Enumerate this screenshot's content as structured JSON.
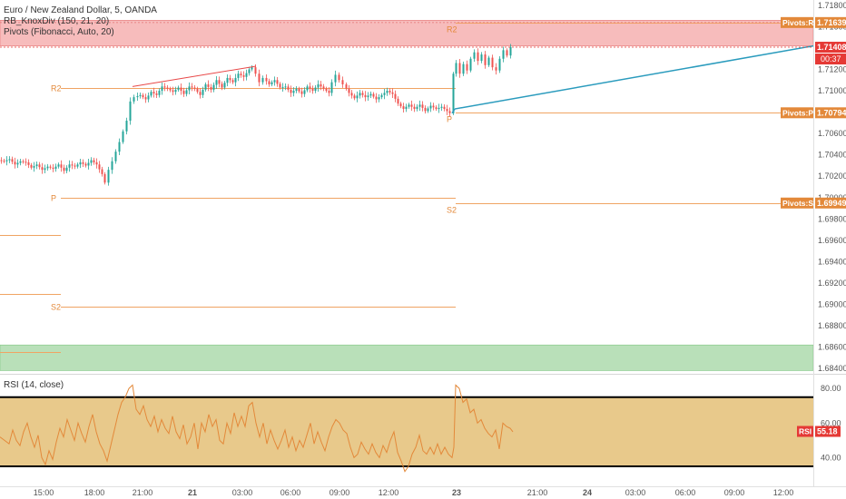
{
  "header": {
    "symbol_line": "Euro / New Zealand Dollar, 5, OANDA",
    "indicator_1": "RB_KnoxDiv (150, 21, 20)",
    "indicator_2": "Pivots (Fibonacci, Auto, 20)"
  },
  "rsi_panel": {
    "title": "RSI (14, close)"
  },
  "colors": {
    "up_candle": "#26a69a",
    "down_candle": "#ef5350",
    "pivot_line": "#f0a463",
    "resistance_zone": "#f7bcbc",
    "support_zone": "#b9e0b9",
    "rsi_band": "#e8c98b",
    "rsi_line": "#e3893a",
    "trend_line_red": "#e84848",
    "trend_line_blue": "#2a9bbd",
    "tag_orange": "#e3893a",
    "tag_red": "#e53935"
  },
  "chart_data": [
    {
      "type": "candlestick",
      "title": "Euro / New Zealand Dollar, 5, OANDA",
      "ylim": [
        1.6835,
        1.7185
      ],
      "y_ticks": [
        "1.71800",
        "1.71600",
        "1.71400",
        "1.71200",
        "1.71000",
        "1.70800",
        "1.70600",
        "1.70400",
        "1.70200",
        "1.70000",
        "1.69800",
        "1.69600",
        "1.69400",
        "1.69200",
        "1.69000",
        "1.68800",
        "1.68600",
        "1.68400"
      ],
      "x_ticks": [
        "15:00",
        "18:00",
        "21:00",
        "21",
        "03:00",
        "06:00",
        "09:00",
        "12:00",
        "23",
        "21:00",
        "24",
        "03:00",
        "06:00",
        "09:00",
        "12:00"
      ],
      "price_path": [
        [
          0,
          1.7035
        ],
        [
          6,
          1.7034
        ],
        [
          12,
          1.7036
        ],
        [
          18,
          1.7031
        ],
        [
          24,
          1.7034
        ],
        [
          30,
          1.7033
        ],
        [
          36,
          1.7028
        ],
        [
          42,
          1.7031
        ],
        [
          48,
          1.7026
        ],
        [
          54,
          1.7029
        ],
        [
          60,
          1.7027
        ],
        [
          66,
          1.7031
        ],
        [
          72,
          1.7025
        ],
        [
          78,
          1.7031
        ],
        [
          84,
          1.7029
        ],
        [
          90,
          1.7033
        ],
        [
          96,
          1.703
        ],
        [
          102,
          1.7035
        ],
        [
          108,
          1.7031
        ],
        [
          114,
          1.7022
        ],
        [
          118,
          1.7014
        ],
        [
          122,
          1.7026
        ],
        [
          126,
          1.7034
        ],
        [
          130,
          1.7043
        ],
        [
          134,
          1.7052
        ],
        [
          138,
          1.7062
        ],
        [
          142,
          1.7072
        ],
        [
          146,
          1.709
        ],
        [
          150,
          1.7094
        ],
        [
          156,
          1.7096
        ],
        [
          162,
          1.7092
        ],
        [
          168,
          1.7099
        ],
        [
          174,
          1.7096
        ],
        [
          180,
          1.7104
        ],
        [
          186,
          1.7102
        ],
        [
          192,
          1.7099
        ],
        [
          198,
          1.7103
        ],
        [
          204,
          1.7097
        ],
        [
          210,
          1.7104
        ],
        [
          216,
          1.7102
        ],
        [
          222,
          1.7096
        ],
        [
          228,
          1.7106
        ],
        [
          234,
          1.7101
        ],
        [
          240,
          1.711
        ],
        [
          246,
          1.7103
        ],
        [
          252,
          1.7112
        ],
        [
          258,
          1.7108
        ],
        [
          264,
          1.7116
        ],
        [
          270,
          1.7113
        ],
        [
          276,
          1.712
        ],
        [
          280,
          1.7122
        ],
        [
          284,
          1.7116
        ],
        [
          288,
          1.7108
        ],
        [
          292,
          1.7112
        ],
        [
          298,
          1.7106
        ],
        [
          304,
          1.711
        ],
        [
          310,
          1.7103
        ],
        [
          316,
          1.7104
        ],
        [
          322,
          1.7098
        ],
        [
          328,
          1.7102
        ],
        [
          334,
          1.7097
        ],
        [
          340,
          1.7104
        ],
        [
          346,
          1.71
        ],
        [
          352,
          1.7106
        ],
        [
          358,
          1.7102
        ],
        [
          364,
          1.7098
        ],
        [
          368,
          1.7108
        ],
        [
          372,
          1.7115
        ],
        [
          376,
          1.711
        ],
        [
          380,
          1.7106
        ],
        [
          386,
          1.7098
        ],
        [
          392,
          1.7093
        ],
        [
          398,
          1.7098
        ],
        [
          404,
          1.7094
        ],
        [
          410,
          1.7097
        ],
        [
          416,
          1.7092
        ],
        [
          422,
          1.7096
        ],
        [
          428,
          1.71
        ],
        [
          434,
          1.7097
        ],
        [
          440,
          1.7088
        ],
        [
          446,
          1.7083
        ],
        [
          452,
          1.7087
        ],
        [
          458,
          1.7083
        ],
        [
          464,
          1.7087
        ],
        [
          470,
          1.7081
        ],
        [
          476,
          1.7086
        ],
        [
          482,
          1.7083
        ],
        [
          488,
          1.7085
        ],
        [
          494,
          1.7081
        ],
        [
          498,
          1.7079
        ],
        [
          501,
          1.7116
        ],
        [
          505,
          1.7126
        ],
        [
          509,
          1.7116
        ],
        [
          513,
          1.7125
        ],
        [
          517,
          1.7119
        ],
        [
          521,
          1.713
        ],
        [
          525,
          1.7136
        ],
        [
          529,
          1.7128
        ],
        [
          533,
          1.7134
        ],
        [
          537,
          1.7124
        ],
        [
          541,
          1.7131
        ],
        [
          545,
          1.7122
        ],
        [
          549,
          1.7119
        ],
        [
          553,
          1.713
        ],
        [
          557,
          1.7138
        ],
        [
          561,
          1.7133
        ],
        [
          565,
          1.7141
        ]
      ],
      "last_price": "1.71408",
      "countdown": "00:37",
      "pivot_tags": [
        {
          "label": "Pivots:R2",
          "value": "1.71639"
        },
        {
          "label": "Pivots:P",
          "value": "1.70794"
        },
        {
          "label": "Pivots:S2",
          "value": "1.69949"
        }
      ],
      "pivot_lines": [
        {
          "label": "R2",
          "price": 1.7103,
          "x_from": 67,
          "x_to": 502
        },
        {
          "label": "P",
          "price": 1.7,
          "x_from": 67,
          "x_to": 502
        },
        {
          "label": "S2",
          "price": 1.68975,
          "x_from": 67,
          "x_to": 502
        },
        {
          "label": "R2",
          "price": 1.71639,
          "x_from": 502,
          "x_to": 888
        },
        {
          "label": "P",
          "price": 1.70794,
          "x_from": 502,
          "x_to": 888
        },
        {
          "label": "S2",
          "price": 1.69949,
          "x_from": 502,
          "x_to": 888
        },
        {
          "label": "",
          "price": 1.6965,
          "x_from": 0,
          "x_to": 67
        },
        {
          "label": "",
          "price": 1.691,
          "x_from": 0,
          "x_to": 67
        },
        {
          "label": "",
          "price": 1.6855,
          "x_from": 0,
          "x_to": 67
        }
      ],
      "zones": [
        {
          "kind": "resistance",
          "from": 1.7142,
          "to": 1.7166
        },
        {
          "kind": "support",
          "from": 1.6838,
          "to": 1.6862
        }
      ]
    },
    {
      "type": "line",
      "title": "RSI (14, close)",
      "ylim": [
        25,
        88
      ],
      "y_ticks": [
        "80.00",
        "60.00",
        "40.00"
      ],
      "band": [
        35,
        75
      ],
      "last_value": "55.18",
      "series": [
        {
          "name": "RSI",
          "points": [
            [
              0,
              52
            ],
            [
              5,
              50
            ],
            [
              10,
              48
            ],
            [
              14,
              56
            ],
            [
              18,
              50
            ],
            [
              22,
              47
            ],
            [
              26,
              55
            ],
            [
              30,
              60
            ],
            [
              34,
              52
            ],
            [
              38,
              46
            ],
            [
              42,
              53
            ],
            [
              46,
              40
            ],
            [
              50,
              36
            ],
            [
              54,
              44
            ],
            [
              58,
              39
            ],
            [
              62,
              49
            ],
            [
              66,
              57
            ],
            [
              70,
              52
            ],
            [
              74,
              62
            ],
            [
              78,
              56
            ],
            [
              82,
              50
            ],
            [
              86,
              60
            ],
            [
              90,
              54
            ],
            [
              94,
              49
            ],
            [
              98,
              58
            ],
            [
              102,
              65
            ],
            [
              106,
              55
            ],
            [
              110,
              48
            ],
            [
              114,
              44
            ],
            [
              118,
              38
            ],
            [
              122,
              47
            ],
            [
              126,
              56
            ],
            [
              130,
              65
            ],
            [
              134,
              72
            ],
            [
              138,
              75
            ],
            [
              142,
              80
            ],
            [
              146,
              82
            ],
            [
              150,
              68
            ],
            [
              154,
              65
            ],
            [
              158,
              70
            ],
            [
              162,
              62
            ],
            [
              166,
              58
            ],
            [
              170,
              64
            ],
            [
              174,
              55
            ],
            [
              178,
              62
            ],
            [
              182,
              57
            ],
            [
              186,
              54
            ],
            [
              190,
              64
            ],
            [
              194,
              55
            ],
            [
              198,
              51
            ],
            [
              202,
              59
            ],
            [
              206,
              48
            ],
            [
              210,
              52
            ],
            [
              214,
              60
            ],
            [
              218,
              45
            ],
            [
              222,
              60
            ],
            [
              226,
              55
            ],
            [
              230,
              65
            ],
            [
              234,
              58
            ],
            [
              238,
              62
            ],
            [
              242,
              50
            ],
            [
              246,
              48
            ],
            [
              250,
              60
            ],
            [
              254,
              54
            ],
            [
              258,
              66
            ],
            [
              262,
              58
            ],
            [
              266,
              64
            ],
            [
              270,
              58
            ],
            [
              274,
              70
            ],
            [
              278,
              72
            ],
            [
              282,
              60
            ],
            [
              286,
              52
            ],
            [
              290,
              60
            ],
            [
              294,
              48
            ],
            [
              298,
              56
            ],
            [
              302,
              50
            ],
            [
              306,
              45
            ],
            [
              310,
              50
            ],
            [
              314,
              56
            ],
            [
              318,
              46
            ],
            [
              322,
              52
            ],
            [
              326,
              44
            ],
            [
              330,
              50
            ],
            [
              334,
              46
            ],
            [
              338,
              53
            ],
            [
              342,
              60
            ],
            [
              346,
              48
            ],
            [
              350,
              55
            ],
            [
              354,
              49
            ],
            [
              358,
              44
            ],
            [
              362,
              52
            ],
            [
              366,
              58
            ],
            [
              370,
              62
            ],
            [
              374,
              60
            ],
            [
              378,
              56
            ],
            [
              382,
              54
            ],
            [
              386,
              46
            ],
            [
              390,
              40
            ],
            [
              394,
              42
            ],
            [
              398,
              49
            ],
            [
              402,
              45
            ],
            [
              406,
              42
            ],
            [
              410,
              48
            ],
            [
              414,
              43
            ],
            [
              418,
              40
            ],
            [
              422,
              47
            ],
            [
              426,
              43
            ],
            [
              430,
              50
            ],
            [
              434,
              55
            ],
            [
              438,
              43
            ],
            [
              442,
              38
            ],
            [
              446,
              32
            ],
            [
              450,
              35
            ],
            [
              454,
              42
            ],
            [
              458,
              46
            ],
            [
              462,
              53
            ],
            [
              466,
              44
            ],
            [
              470,
              42
            ],
            [
              474,
              46
            ],
            [
              478,
              42
            ],
            [
              482,
              48
            ],
            [
              486,
              42
            ],
            [
              490,
              46
            ],
            [
              494,
              42
            ],
            [
              498,
              40
            ],
            [
              500,
              46
            ],
            [
              502,
              82
            ],
            [
              506,
              80
            ],
            [
              510,
              72
            ],
            [
              514,
              74
            ],
            [
              518,
              66
            ],
            [
              522,
              68
            ],
            [
              526,
              60
            ],
            [
              530,
              62
            ],
            [
              534,
              57
            ],
            [
              538,
              54
            ],
            [
              542,
              52
            ],
            [
              546,
              56
            ],
            [
              550,
              45
            ],
            [
              554,
              60
            ],
            [
              558,
              58
            ],
            [
              562,
              57
            ],
            [
              565,
              55
            ]
          ]
        }
      ]
    }
  ]
}
